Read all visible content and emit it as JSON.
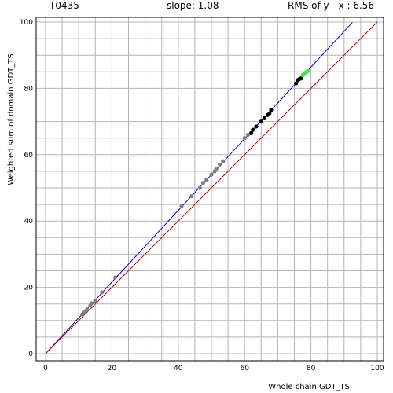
{
  "header": {
    "target": "T0435",
    "slope_text": "slope: 1.08",
    "rms_text": "RMS of  y - x : 6.56"
  },
  "chart_data": {
    "type": "scatter",
    "xlabel": "Whole chain GDT_TS",
    "ylabel": "Weighted sum of domain GDT_TS",
    "xlim": [
      0,
      100
    ],
    "ylim": [
      0,
      100
    ],
    "grid": true,
    "xticks": [
      0,
      20,
      40,
      60,
      80,
      100
    ],
    "yticks": [
      0,
      20,
      40,
      60,
      80,
      100
    ],
    "colors": {
      "grid": "#b4b4b4",
      "fit_line": "#0000cc",
      "identity_line": "#cc0000",
      "gray_points": "#808080",
      "black_points": "#000000",
      "green_points": "#33ee33"
    },
    "lines": [
      {
        "name": "fit",
        "slope": 1.08,
        "intercept": 0,
        "x": [
          0,
          92.5
        ]
      },
      {
        "name": "identity",
        "slope": 1.0,
        "intercept": 0,
        "x": [
          0,
          100
        ]
      }
    ],
    "series": [
      {
        "group": "gray",
        "points": [
          [
            11,
            11.8
          ],
          [
            11.5,
            12.5
          ],
          [
            12.5,
            13.3
          ],
          [
            13.5,
            14.5
          ],
          [
            13.8,
            15.2
          ],
          [
            15,
            16
          ],
          [
            17,
            18.5
          ],
          [
            21,
            23
          ],
          [
            41,
            44.5
          ],
          [
            44,
            47.5
          ],
          [
            46.5,
            50
          ],
          [
            47.5,
            51.5
          ],
          [
            48.5,
            52.5
          ],
          [
            50,
            54
          ],
          [
            51,
            55
          ],
          [
            51.5,
            55.8
          ],
          [
            52.5,
            57
          ],
          [
            53.5,
            58
          ],
          [
            60,
            65
          ],
          [
            61,
            66
          ]
        ]
      },
      {
        "group": "black",
        "points": [
          [
            62,
            66.5
          ],
          [
            62.5,
            67.5
          ],
          [
            63.5,
            68.5
          ],
          [
            65,
            70
          ],
          [
            66,
            71
          ],
          [
            67,
            72
          ],
          [
            67.5,
            72.5
          ],
          [
            68,
            73.5
          ],
          [
            75.5,
            81.5
          ],
          [
            76,
            82.5
          ],
          [
            76.5,
            82.8
          ],
          [
            77,
            83
          ]
        ]
      },
      {
        "group": "green",
        "points": [
          [
            77.5,
            84
          ],
          [
            78,
            84.3
          ],
          [
            78.5,
            84.8
          ],
          [
            79,
            85.2
          ]
        ]
      }
    ]
  }
}
